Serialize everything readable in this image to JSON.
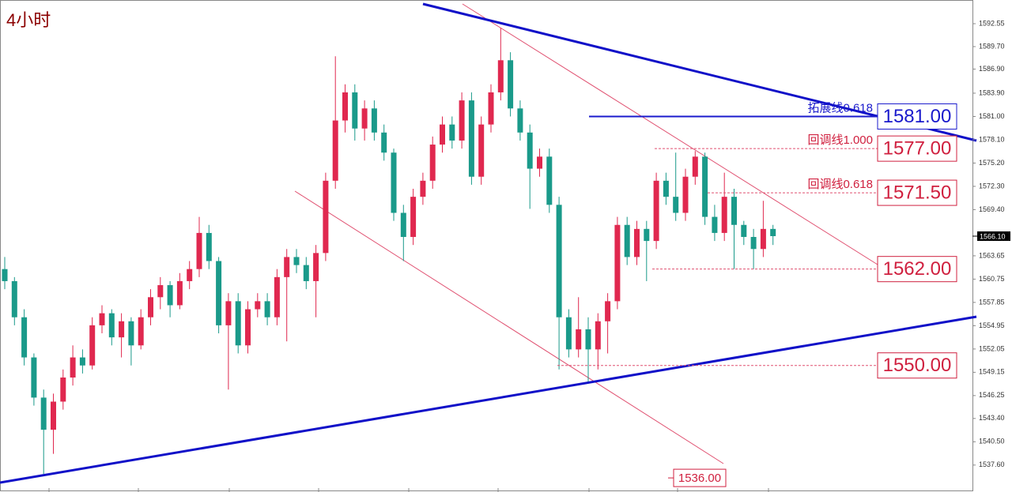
{
  "chart_data": {
    "type": "candlestick",
    "title": "4小时",
    "up_color": "#e0284f",
    "down_color": "#1a9a8a",
    "open": [
      1562,
      1560.5,
      1556,
      1551,
      1546,
      1542,
      1545.5,
      1548.5,
      1551,
      1550,
      1555,
      1556.5,
      1553.5,
      1555.5,
      1552.5,
      1556,
      1558.5,
      1560,
      1557.5,
      1560.5,
      1562,
      1566.5,
      1563,
      1555,
      1558,
      1552.5,
      1557,
      1558,
      1556,
      1561,
      1563.5,
      1562.5,
      1560.5,
      1564,
      1573,
      1580.5,
      1584,
      1579.5,
      1582,
      1579,
      1576.5,
      1569,
      1566,
      1571,
      1573,
      1577.5,
      1580,
      1578,
      1583,
      1573.5,
      1580,
      1584,
      1588,
      1582,
      1579,
      1574.5,
      1576,
      1570,
      1556,
      1552,
      1554.5,
      1552,
      1555.5,
      1558,
      1567.5,
      1563.5,
      1567,
      1565.5,
      1573,
      1571,
      1569,
      1573.5,
      1576,
      1568.5,
      1566.5,
      1571,
      1567.5,
      1566,
      1564.5,
      1567
    ],
    "high": [
      1563.5,
      1561,
      1557,
      1551.5,
      1547,
      1546.5,
      1549.5,
      1552.5,
      1552,
      1556,
      1557.5,
      1557,
      1556.5,
      1556,
      1557,
      1559.5,
      1561,
      1560.5,
      1561.5,
      1563,
      1568.5,
      1567.5,
      1563.5,
      1559,
      1559,
      1558,
      1559,
      1559,
      1562,
      1564.5,
      1564.5,
      1563.5,
      1565,
      1574,
      1588.5,
      1585,
      1585,
      1583,
      1583,
      1580,
      1577,
      1570,
      1572,
      1574,
      1578.5,
      1581,
      1581,
      1584,
      1584,
      1581,
      1585,
      1592,
      1589,
      1583,
      1580,
      1577,
      1577,
      1571,
      1557,
      1558.5,
      1556,
      1556.5,
      1559,
      1568.5,
      1568.5,
      1568,
      1568,
      1574,
      1574,
      1576.5,
      1574.5,
      1576.7,
      1576.5,
      1570,
      1574,
      1572,
      1568,
      1567,
      1570.5,
      1567.5
    ],
    "low": [
      1559.5,
      1555,
      1550,
      1545,
      1536.5,
      1539,
      1544.5,
      1547.5,
      1549,
      1549.5,
      1554,
      1552.5,
      1551,
      1550,
      1552,
      1555,
      1557,
      1556,
      1557,
      1559.5,
      1561,
      1562,
      1554,
      1547,
      1551.5,
      1551.5,
      1556,
      1555,
      1555,
      1553,
      1561.5,
      1559.5,
      1556,
      1563,
      1572,
      1579,
      1578,
      1578,
      1578,
      1575.5,
      1568,
      1563,
      1565,
      1570,
      1572,
      1576.5,
      1577,
      1577,
      1572.5,
      1572.5,
      1579,
      1583,
      1581,
      1578,
      1569.5,
      1573.5,
      1569,
      1549.5,
      1551,
      1551,
      1548,
      1549.5,
      1551.5,
      1557,
      1562.5,
      1562.5,
      1560.5,
      1564.5,
      1570,
      1568,
      1568,
      1572.5,
      1567.5,
      1565.5,
      1565.5,
      1562,
      1565,
      1562,
      1563.5,
      1565
    ],
    "close": [
      1560.5,
      1556,
      1551,
      1546,
      1542,
      1545.5,
      1548.5,
      1551,
      1550,
      1555,
      1556.5,
      1553.5,
      1555.5,
      1552.5,
      1556,
      1558.5,
      1560,
      1557.5,
      1560.5,
      1562,
      1566.5,
      1563,
      1555,
      1558,
      1552.5,
      1557,
      1558,
      1556,
      1561,
      1563.5,
      1562.5,
      1560.5,
      1564,
      1573,
      1580.5,
      1584,
      1579.5,
      1582,
      1579,
      1576.5,
      1569,
      1566,
      1571,
      1573,
      1577.5,
      1580,
      1578,
      1583,
      1573.5,
      1580,
      1584,
      1588,
      1582,
      1579,
      1574.5,
      1576,
      1570,
      1556,
      1552,
      1554.5,
      1552,
      1555.5,
      1558,
      1567.5,
      1563.5,
      1567,
      1565.5,
      1573,
      1571,
      1569,
      1573.5,
      1576,
      1568.5,
      1566.5,
      1571,
      1567.5,
      1566,
      1564.5,
      1567,
      1566.1
    ],
    "ylim": [
      1534.24,
      1595.5
    ],
    "yticks": [
      1592.55,
      {
        "value": 1589.7,
        "label": "1589.70"
      },
      {
        "value": 1586.9,
        "label": "1586.90"
      },
      {
        "value": 1583.9,
        "label": "1583.90"
      },
      {
        "value": 1581,
        "label": "1581.00"
      },
      {
        "value": 1578.1,
        "label": "1578.10"
      },
      {
        "value": 1575.2,
        "label": "1575.20"
      },
      {
        "value": 1572.3,
        "label": "1572.30"
      },
      {
        "value": 1569.4,
        "label": "1569.40"
      },
      1563.65,
      1560.75,
      1557.85,
      1554.95,
      1552.05,
      1549.15,
      1546.25,
      {
        "value": 1543.4,
        "label": "1543.40"
      },
      {
        "value": 1540.5,
        "label": "1540.50"
      },
      {
        "value": 1537.6,
        "label": "1537.60"
      }
    ],
    "last_price": {
      "value": 1566.1,
      "label": "1566.10"
    },
    "levels": [
      {
        "value": 1581,
        "label": "1581.00",
        "text": "拓展线0.618",
        "color": "#1a1acc"
      },
      {
        "value": 1577,
        "label": "1577.00",
        "text": "回调线1.000",
        "color": "#d0203f"
      },
      {
        "value": 1571.5,
        "label": "1571.50",
        "text": "回调线0.618",
        "color": "#d0203f"
      },
      {
        "value": 1562,
        "label": "1562.00",
        "color": "#d0203f"
      },
      {
        "value": 1550,
        "label": "1550.00",
        "color": "#d0203f"
      }
    ],
    "target": {
      "value": 1536,
      "label": "1536.00",
      "color": "#d0203f"
    }
  }
}
